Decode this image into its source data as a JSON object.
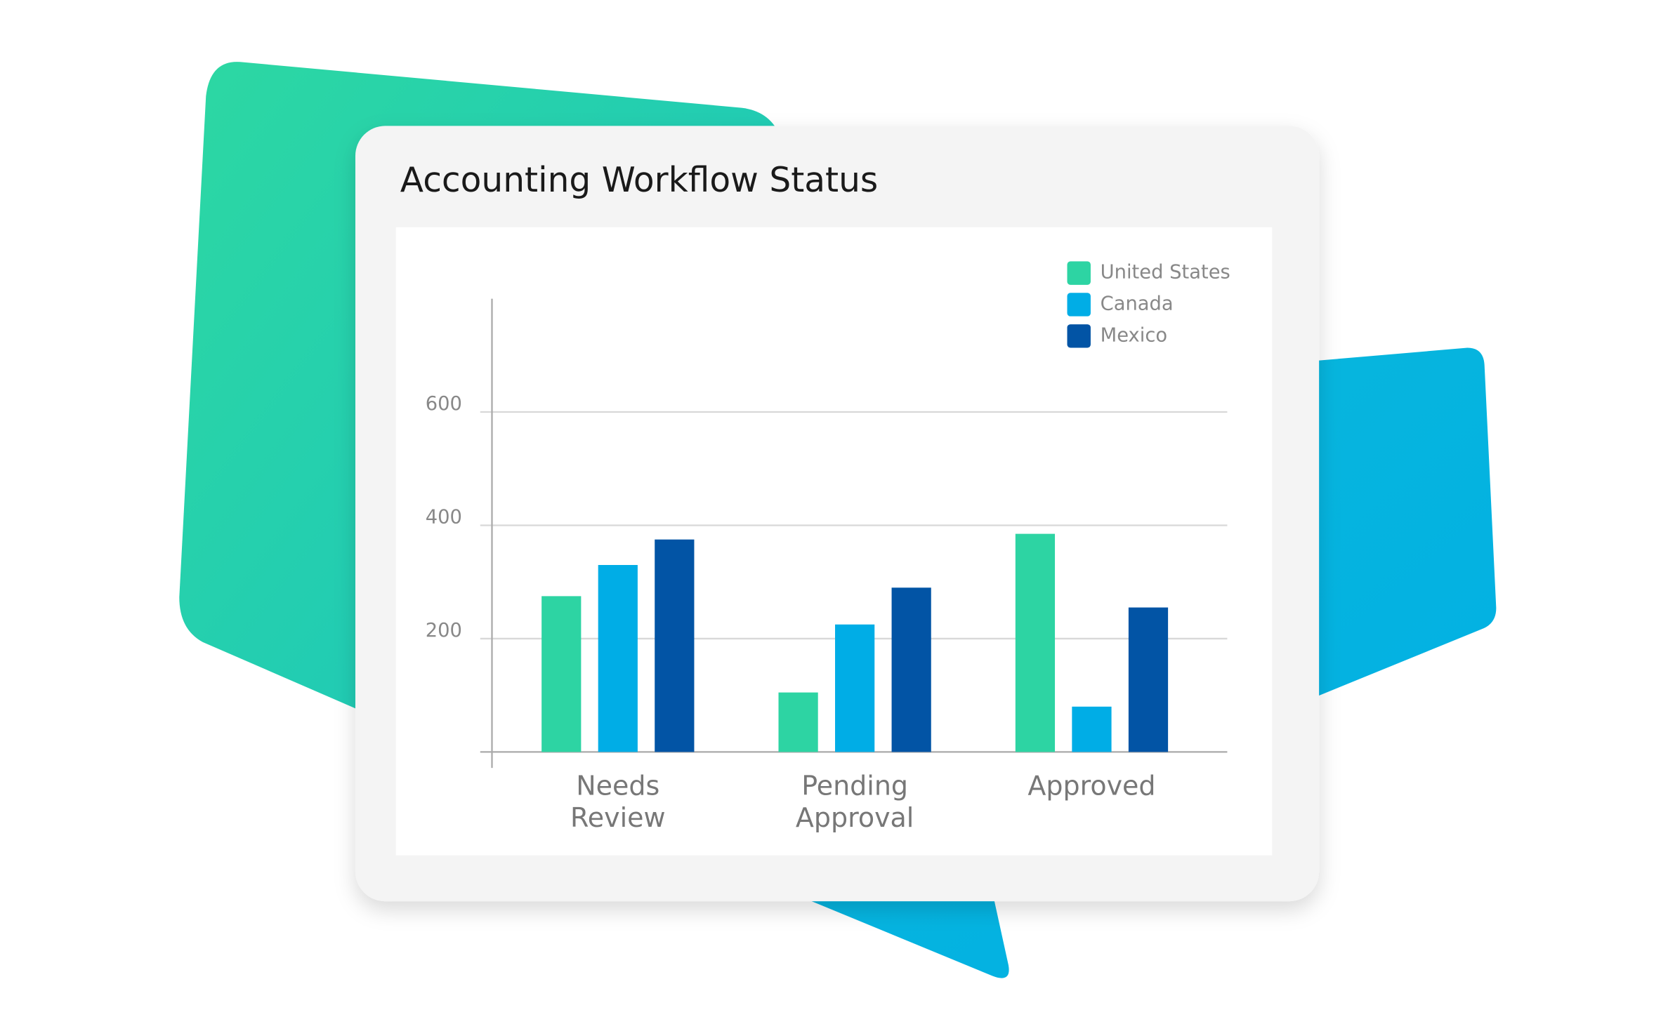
{
  "chart_data": {
    "type": "bar",
    "title": "Accounting Workflow Status",
    "categories": [
      "Needs Review",
      "Pending Approval",
      "Approved"
    ],
    "series": [
      {
        "name": "United States",
        "color": "#2dd4a3",
        "values": [
          275,
          105,
          385
        ]
      },
      {
        "name": "Canada",
        "color": "#00ade6",
        "values": [
          330,
          225,
          80
        ]
      },
      {
        "name": "Mexico",
        "color": "#0254a5",
        "values": [
          375,
          290,
          255
        ]
      }
    ],
    "ylim": [
      0,
      800
    ],
    "yticks": [
      200,
      400,
      600
    ],
    "grid": true,
    "legend": "top-right"
  }
}
